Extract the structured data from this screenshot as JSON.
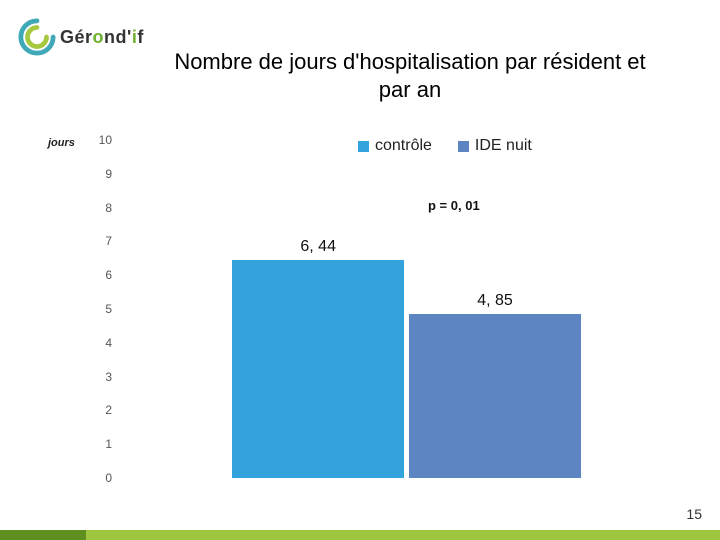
{
  "logo": {
    "text_prefix": "Gér",
    "text_green": "o",
    "text_mid": "nd'",
    "text_green2": "i",
    "text_suffix": "f",
    "swirl_outer_color": "#3fa9b8",
    "swirl_inner_color": "#a7c93f"
  },
  "title": "Nombre de jours d'hospitalisation par résident et par an",
  "chart": {
    "type": "bar",
    "y_axis_label": "jours",
    "ylim": [
      0,
      10
    ],
    "ytick_step": 1,
    "ticks": [
      "10",
      "9",
      "8",
      "7",
      "6",
      "5",
      "4",
      "3",
      "2",
      "1",
      "0"
    ],
    "background_color": "#ffffff",
    "bars": [
      {
        "label": "6, 44",
        "value": 6.44,
        "color": "#32a3dc",
        "x_pct": 22,
        "width_pct": 33
      },
      {
        "label": "4, 85",
        "value": 4.85,
        "color": "#5d85c1",
        "x_pct": 56,
        "width_pct": 33
      }
    ],
    "legend": [
      {
        "label": "contrôle",
        "color": "#32a3dc"
      },
      {
        "label": "IDE nuit",
        "color": "#5d85c1"
      }
    ],
    "p_value_text": "p = 0, 01"
  },
  "page_number": "15",
  "bottom_bar": {
    "seg1_width_pct": 12,
    "seg2_width_pct": 88,
    "seg1_color": "#5e8f1f",
    "seg2_color": "#9dc63e"
  }
}
